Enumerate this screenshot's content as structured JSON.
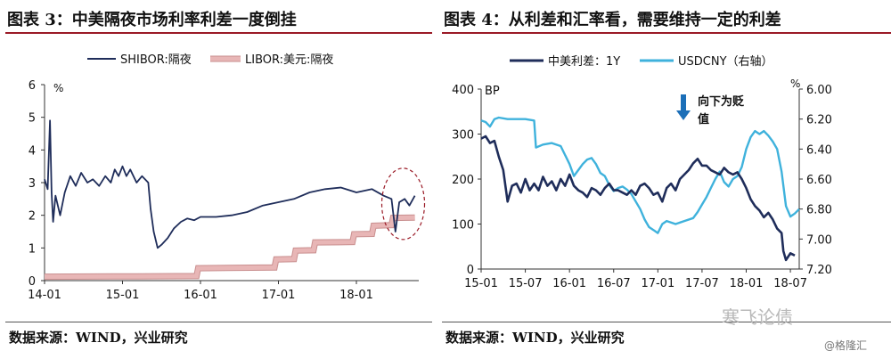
{
  "left": {
    "title": "图表 3：中美隔夜市场利率利差一度倒挂",
    "source": "数据来源：WIND，兴业研究",
    "chart_data": {
      "type": "line",
      "ylabel": "%",
      "ylim": [
        0,
        6
      ],
      "yticks": [
        "0",
        "1",
        "2",
        "3",
        "4",
        "5",
        "6"
      ],
      "xlim": [
        2014.0,
        2018.8
      ],
      "xticks": [
        {
          "label": "14-01",
          "v": 2014.0
        },
        {
          "label": "15-01",
          "v": 2015.0
        },
        {
          "label": "16-01",
          "v": 2016.0
        },
        {
          "label": "17-01",
          "v": 2017.0
        },
        {
          "label": "18-01",
          "v": 2018.0
        }
      ],
      "series": [
        {
          "name": "SHIBOR:隔夜",
          "color": "#1f2d5a",
          "style": "line",
          "points": [
            [
              2014.0,
              3.1
            ],
            [
              2014.04,
              2.8
            ],
            [
              2014.07,
              4.9
            ],
            [
              2014.09,
              2.7
            ],
            [
              2014.11,
              1.8
            ],
            [
              2014.14,
              2.6
            ],
            [
              2014.2,
              2.0
            ],
            [
              2014.26,
              2.7
            ],
            [
              2014.33,
              3.2
            ],
            [
              2014.4,
              2.9
            ],
            [
              2014.47,
              3.3
            ],
            [
              2014.55,
              3.0
            ],
            [
              2014.62,
              3.1
            ],
            [
              2014.7,
              2.9
            ],
            [
              2014.78,
              3.2
            ],
            [
              2014.85,
              3.0
            ],
            [
              2014.9,
              3.4
            ],
            [
              2014.95,
              3.2
            ],
            [
              2015.0,
              3.5
            ],
            [
              2015.05,
              3.2
            ],
            [
              2015.1,
              3.4
            ],
            [
              2015.18,
              3.0
            ],
            [
              2015.25,
              3.2
            ],
            [
              2015.33,
              3.0
            ],
            [
              2015.36,
              2.2
            ],
            [
              2015.4,
              1.5
            ],
            [
              2015.45,
              1.0
            ],
            [
              2015.5,
              1.1
            ],
            [
              2015.58,
              1.3
            ],
            [
              2015.66,
              1.6
            ],
            [
              2015.75,
              1.8
            ],
            [
              2015.83,
              1.9
            ],
            [
              2015.92,
              1.85
            ],
            [
              2016.0,
              1.95
            ],
            [
              2016.2,
              1.95
            ],
            [
              2016.4,
              2.0
            ],
            [
              2016.6,
              2.1
            ],
            [
              2016.8,
              2.3
            ],
            [
              2017.0,
              2.4
            ],
            [
              2017.2,
              2.5
            ],
            [
              2017.4,
              2.7
            ],
            [
              2017.6,
              2.8
            ],
            [
              2017.8,
              2.85
            ],
            [
              2018.0,
              2.7
            ],
            [
              2018.2,
              2.8
            ],
            [
              2018.35,
              2.6
            ],
            [
              2018.45,
              2.5
            ],
            [
              2018.5,
              1.5
            ],
            [
              2018.55,
              2.4
            ],
            [
              2018.62,
              2.5
            ],
            [
              2018.68,
              2.3
            ],
            [
              2018.75,
              2.6
            ]
          ]
        },
        {
          "name": "LIBOR:美元:隔夜",
          "color": "#e8b6b6",
          "style": "band",
          "points": [
            [
              2014.0,
              0.12
            ],
            [
              2015.2,
              0.13
            ],
            [
              2015.95,
              0.14
            ],
            [
              2015.97,
              0.38
            ],
            [
              2016.95,
              0.4
            ],
            [
              2016.97,
              0.65
            ],
            [
              2017.2,
              0.66
            ],
            [
              2017.22,
              0.92
            ],
            [
              2017.45,
              0.93
            ],
            [
              2017.47,
              1.17
            ],
            [
              2017.95,
              1.18
            ],
            [
              2017.97,
              1.42
            ],
            [
              2018.2,
              1.43
            ],
            [
              2018.22,
              1.68
            ],
            [
              2018.45,
              1.7
            ],
            [
              2018.47,
              1.92
            ],
            [
              2018.75,
              1.93
            ]
          ]
        }
      ],
      "highlight": "dashed-ellipse"
    }
  },
  "right": {
    "title": "图表 4：从利差和汇率看，需要维持一定的利差",
    "source": "数据来源：WIND，兴业研究",
    "chart_data": {
      "type": "line",
      "ylabel_left": "BP",
      "ylabel_right": "%",
      "ylim_left": [
        0,
        400
      ],
      "ylim_right": [
        6.0,
        7.2
      ],
      "right_inverted": true,
      "yticks_left": [
        "0",
        "100",
        "200",
        "300",
        "400"
      ],
      "yticks_right": [
        "6.00",
        "6.20",
        "6.40",
        "6.60",
        "6.80",
        "7.00",
        "7.20"
      ],
      "xlim": [
        2015.0,
        2018.6
      ],
      "xticks": [
        {
          "label": "15-01",
          "v": 2015.0
        },
        {
          "label": "15-07",
          "v": 2015.5
        },
        {
          "label": "16-01",
          "v": 2016.0
        },
        {
          "label": "16-07",
          "v": 2016.5
        },
        {
          "label": "17-01",
          "v": 2017.0
        },
        {
          "label": "17-07",
          "v": 2017.5
        },
        {
          "label": "18-01",
          "v": 2018.0
        },
        {
          "label": "18-07",
          "v": 2018.5
        }
      ],
      "annotation": "向下为贬值",
      "series": [
        {
          "name": "中美利差：1Y",
          "color": "#1f2d5a",
          "axis": "left",
          "points": [
            [
              2015.0,
              290
            ],
            [
              2015.05,
              295
            ],
            [
              2015.1,
              280
            ],
            [
              2015.15,
              285
            ],
            [
              2015.2,
              250
            ],
            [
              2015.25,
              220
            ],
            [
              2015.3,
              150
            ],
            [
              2015.35,
              185
            ],
            [
              2015.4,
              190
            ],
            [
              2015.45,
              170
            ],
            [
              2015.5,
              200
            ],
            [
              2015.55,
              175
            ],
            [
              2015.6,
              190
            ],
            [
              2015.65,
              175
            ],
            [
              2015.7,
              205
            ],
            [
              2015.75,
              185
            ],
            [
              2015.8,
              195
            ],
            [
              2015.85,
              175
            ],
            [
              2015.9,
              200
            ],
            [
              2015.95,
              185
            ],
            [
              2016.0,
              210
            ],
            [
              2016.05,
              185
            ],
            [
              2016.1,
              175
            ],
            [
              2016.15,
              170
            ],
            [
              2016.2,
              160
            ],
            [
              2016.25,
              180
            ],
            [
              2016.3,
              175
            ],
            [
              2016.35,
              165
            ],
            [
              2016.4,
              180
            ],
            [
              2016.45,
              190
            ],
            [
              2016.5,
              175
            ],
            [
              2016.55,
              175
            ],
            [
              2016.6,
              170
            ],
            [
              2016.65,
              165
            ],
            [
              2016.7,
              175
            ],
            [
              2016.75,
              165
            ],
            [
              2016.8,
              185
            ],
            [
              2016.85,
              190
            ],
            [
              2016.9,
              180
            ],
            [
              2016.95,
              165
            ],
            [
              2017.0,
              170
            ],
            [
              2017.05,
              150
            ],
            [
              2017.1,
              180
            ],
            [
              2017.15,
              190
            ],
            [
              2017.2,
              175
            ],
            [
              2017.25,
              200
            ],
            [
              2017.3,
              210
            ],
            [
              2017.35,
              220
            ],
            [
              2017.4,
              235
            ],
            [
              2017.45,
              245
            ],
            [
              2017.5,
              230
            ],
            [
              2017.55,
              230
            ],
            [
              2017.6,
              220
            ],
            [
              2017.65,
              215
            ],
            [
              2017.7,
              210
            ],
            [
              2017.75,
              225
            ],
            [
              2017.8,
              215
            ],
            [
              2017.85,
              210
            ],
            [
              2017.9,
              215
            ],
            [
              2017.95,
              200
            ],
            [
              2018.0,
              180
            ],
            [
              2018.05,
              155
            ],
            [
              2018.1,
              140
            ],
            [
              2018.15,
              130
            ],
            [
              2018.2,
              115
            ],
            [
              2018.25,
              125
            ],
            [
              2018.3,
              110
            ],
            [
              2018.35,
              90
            ],
            [
              2018.4,
              80
            ],
            [
              2018.42,
              40
            ],
            [
              2018.45,
              20
            ],
            [
              2018.5,
              35
            ],
            [
              2018.55,
              30
            ]
          ]
        },
        {
          "name": "USDCNY（右轴）",
          "color": "#3fb2dc",
          "axis": "right",
          "points": [
            [
              2015.0,
              6.21
            ],
            [
              2015.05,
              6.22
            ],
            [
              2015.1,
              6.25
            ],
            [
              2015.15,
              6.2
            ],
            [
              2015.2,
              6.19
            ],
            [
              2015.3,
              6.2
            ],
            [
              2015.4,
              6.2
            ],
            [
              2015.5,
              6.2
            ],
            [
              2015.6,
              6.21
            ],
            [
              2015.62,
              6.39
            ],
            [
              2015.7,
              6.37
            ],
            [
              2015.8,
              6.36
            ],
            [
              2015.9,
              6.38
            ],
            [
              2016.0,
              6.5
            ],
            [
              2016.05,
              6.58
            ],
            [
              2016.1,
              6.54
            ],
            [
              2016.15,
              6.5
            ],
            [
              2016.2,
              6.47
            ],
            [
              2016.25,
              6.46
            ],
            [
              2016.3,
              6.5
            ],
            [
              2016.35,
              6.56
            ],
            [
              2016.4,
              6.58
            ],
            [
              2016.45,
              6.64
            ],
            [
              2016.5,
              6.68
            ],
            [
              2016.55,
              6.66
            ],
            [
              2016.6,
              6.65
            ],
            [
              2016.65,
              6.67
            ],
            [
              2016.7,
              6.7
            ],
            [
              2016.75,
              6.75
            ],
            [
              2016.8,
              6.8
            ],
            [
              2016.85,
              6.87
            ],
            [
              2016.9,
              6.92
            ],
            [
              2016.95,
              6.94
            ],
            [
              2017.0,
              6.96
            ],
            [
              2017.05,
              6.9
            ],
            [
              2017.1,
              6.88
            ],
            [
              2017.2,
              6.9
            ],
            [
              2017.3,
              6.88
            ],
            [
              2017.4,
              6.86
            ],
            [
              2017.45,
              6.82
            ],
            [
              2017.5,
              6.77
            ],
            [
              2017.55,
              6.72
            ],
            [
              2017.6,
              6.66
            ],
            [
              2017.65,
              6.6
            ],
            [
              2017.7,
              6.55
            ],
            [
              2017.75,
              6.62
            ],
            [
              2017.8,
              6.65
            ],
            [
              2017.85,
              6.6
            ],
            [
              2017.9,
              6.58
            ],
            [
              2017.95,
              6.52
            ],
            [
              2018.0,
              6.4
            ],
            [
              2018.05,
              6.32
            ],
            [
              2018.1,
              6.28
            ],
            [
              2018.15,
              6.3
            ],
            [
              2018.2,
              6.28
            ],
            [
              2018.25,
              6.31
            ],
            [
              2018.3,
              6.35
            ],
            [
              2018.35,
              6.4
            ],
            [
              2018.4,
              6.55
            ],
            [
              2018.45,
              6.78
            ],
            [
              2018.5,
              6.85
            ],
            [
              2018.55,
              6.83
            ],
            [
              2018.6,
              6.8
            ]
          ]
        }
      ]
    }
  },
  "watermark": "寒飞论债",
  "credit": "@格隆汇"
}
